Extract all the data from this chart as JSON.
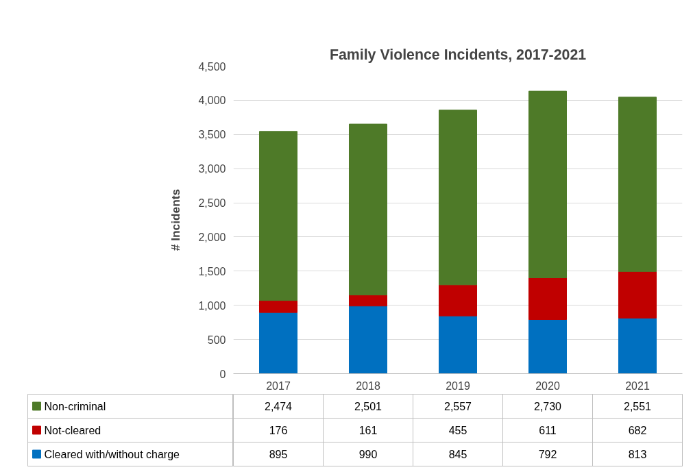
{
  "chart_data": {
    "type": "bar",
    "stacked": true,
    "title": "Family Violence Incidents, 2017-2021",
    "ylabel": "# Incidents",
    "categories": [
      "2017",
      "2018",
      "2019",
      "2020",
      "2021"
    ],
    "series": [
      {
        "name": "Cleared with/without charge",
        "color": "#0070c0",
        "values": [
          895,
          990,
          845,
          792,
          813
        ],
        "value_labels": [
          "895",
          "990",
          "845",
          "792",
          "813"
        ]
      },
      {
        "name": "Not-cleared",
        "color": "#c00000",
        "values": [
          176,
          161,
          455,
          611,
          682
        ],
        "value_labels": [
          "176",
          "161",
          "455",
          "611",
          "682"
        ]
      },
      {
        "name": "Non-criminal",
        "color": "#4e7a28",
        "values": [
          2474,
          2501,
          2557,
          2730,
          2551
        ],
        "value_labels": [
          "2,474",
          "2,501",
          "2,557",
          "2,730",
          "2,551"
        ]
      }
    ],
    "ylim": [
      0,
      4500
    ],
    "yticks": [
      {
        "value": 0,
        "label": "0"
      },
      {
        "value": 500,
        "label": "500"
      },
      {
        "value": 1000,
        "label": "1,000"
      },
      {
        "value": 1500,
        "label": "1,500"
      },
      {
        "value": 2000,
        "label": "2,000"
      },
      {
        "value": 2500,
        "label": "2,500"
      },
      {
        "value": 3000,
        "label": "3,000"
      },
      {
        "value": 3500,
        "label": "3,500"
      },
      {
        "value": 4000,
        "label": "4,000"
      },
      {
        "value": 4500,
        "label": "4,500"
      }
    ],
    "grid": "y",
    "legend": "bottom"
  }
}
